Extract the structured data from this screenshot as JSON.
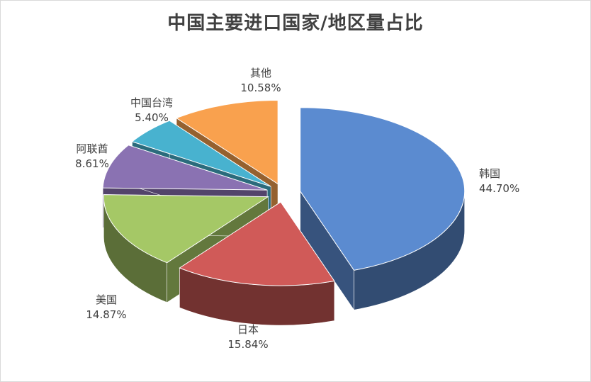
{
  "chart_data": {
    "type": "pie",
    "title": "中国主要进口国家/地区量占比",
    "slices": [
      {
        "label": "韩国",
        "value": 44.7,
        "value_label": "44.70%",
        "color": "#5b8bd0"
      },
      {
        "label": "日本",
        "value": 15.84,
        "value_label": "15.84%",
        "color": "#d05a58"
      },
      {
        "label": "美国",
        "value": 14.87,
        "value_label": "14.87%",
        "color": "#a5c866"
      },
      {
        "label": "阿联酋",
        "value": 8.61,
        "value_label": "8.61%",
        "color": "#8a72b2"
      },
      {
        "label": "中国台湾",
        "value": 5.4,
        "value_label": "5.40%",
        "color": "#48b2cf"
      },
      {
        "label": "其他",
        "value": 10.58,
        "value_label": "10.58%",
        "color": "#f9a14e"
      }
    ],
    "exploded": true,
    "style": "3d"
  }
}
